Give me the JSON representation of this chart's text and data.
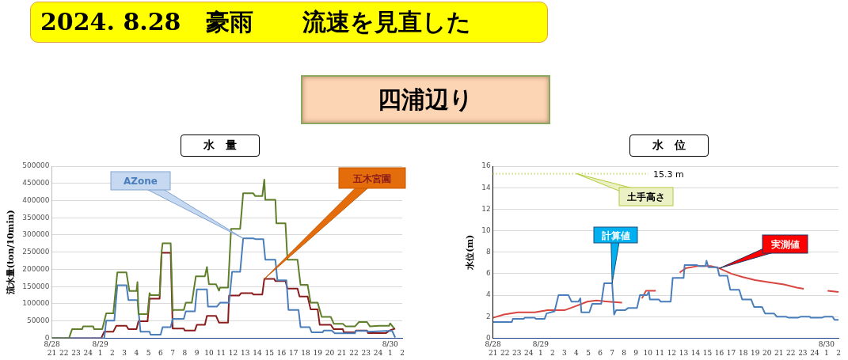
{
  "chart_data": [
    {
      "type": "other",
      "title": "2024. 8.28   豪雨      流速を見直した",
      "subtitle": "四浦辺り"
    },
    {
      "type": "line",
      "title": "水　量",
      "ylabel": "流水量(ton/10min)",
      "xlim": [
        "2024-08-28T21:00",
        "2024-08-30T02:00"
      ],
      "xticks": [
        {
          "value": "2024-08-28T21:00",
          "label": "8/28\n21"
        },
        {
          "value": "2024-08-28T22:00",
          "label": "22"
        },
        {
          "value": "2024-08-28T23:00",
          "label": "23"
        },
        {
          "value": "2024-08-29T00:00",
          "label": "24"
        },
        {
          "value": "2024-08-29T01:00",
          "label": "8/29\n1"
        },
        {
          "value": "2024-08-29T02:00",
          "label": "2"
        },
        {
          "value": "2024-08-29T03:00",
          "label": "3"
        },
        {
          "value": "2024-08-29T04:00",
          "label": "4"
        },
        {
          "value": "2024-08-29T05:00",
          "label": "5"
        },
        {
          "value": "2024-08-29T06:00",
          "label": "6"
        },
        {
          "value": "2024-08-29T07:00",
          "label": "7"
        },
        {
          "value": "2024-08-29T08:00",
          "label": "8"
        },
        {
          "value": "2024-08-29T09:00",
          "label": "9"
        },
        {
          "value": "2024-08-29T10:00",
          "label": "10"
        },
        {
          "value": "2024-08-29T11:00",
          "label": "11"
        },
        {
          "value": "2024-08-29T12:00",
          "label": "12"
        },
        {
          "value": "2024-08-29T13:00",
          "label": "13"
        },
        {
          "value": "2024-08-29T14:00",
          "label": "14"
        },
        {
          "value": "2024-08-29T15:00",
          "label": "15"
        },
        {
          "value": "2024-08-29T16:00",
          "label": "16"
        },
        {
          "value": "2024-08-29T17:00",
          "label": "17"
        },
        {
          "value": "2024-08-29T18:00",
          "label": "18"
        },
        {
          "value": "2024-08-29T19:00",
          "label": "19"
        },
        {
          "value": "2024-08-29T20:00",
          "label": "20"
        },
        {
          "value": "2024-08-29T21:00",
          "label": "21"
        },
        {
          "value": "2024-08-29T22:00",
          "label": "22"
        },
        {
          "value": "2024-08-29T23:00",
          "label": "23"
        },
        {
          "value": "2024-08-30T00:00",
          "label": "24"
        },
        {
          "value": "2024-08-30T01:00",
          "label": "8/30\n1"
        },
        {
          "value": "2024-08-30T02:00",
          "label": "2"
        }
      ],
      "ylim": [
        0,
        500000
      ],
      "yticks": [
        0,
        50000,
        100000,
        150000,
        200000,
        250000,
        300000,
        350000,
        400000,
        450000,
        500000
      ],
      "grid": "y",
      "legend": false,
      "marker": "none",
      "series": [
        {
          "color": "#5f7f2a",
          "x": [
            "2024-08-28T21:00",
            "2024-08-28T22:25",
            "2024-08-28T22:40",
            "2024-08-28T23:30",
            "2024-08-28T23:35",
            "2024-08-29T00:25",
            "2024-08-29T00:30",
            "2024-08-29T01:10",
            "2024-08-29T01:30",
            "2024-08-29T02:05",
            "2024-08-29T02:25",
            "2024-08-29T03:10",
            "2024-08-29T03:25",
            "2024-08-29T04:00",
            "2024-08-29T04:05",
            "2024-08-29T04:10",
            "2024-08-29T04:55",
            "2024-08-29T05:05",
            "2024-08-29T05:10",
            "2024-08-29T05:55",
            "2024-08-29T06:05",
            "2024-08-29T06:10",
            "2024-08-29T06:50",
            "2024-08-29T07:00",
            "2024-08-29T07:05",
            "2024-08-29T07:55",
            "2024-08-29T08:05",
            "2024-08-29T08:35",
            "2024-08-29T08:55",
            "2024-08-29T09:40",
            "2024-08-29T09:50",
            "2024-08-29T10:00",
            "2024-08-29T10:35",
            "2024-08-29T10:50",
            "2024-08-29T10:55",
            "2024-08-29T11:35",
            "2024-08-29T11:50",
            "2024-08-29T12:35",
            "2024-08-29T12:50",
            "2024-08-29T13:40",
            "2024-08-29T13:50",
            "2024-08-29T14:25",
            "2024-08-29T14:35",
            "2024-08-29T14:40",
            "2024-08-29T15:30",
            "2024-08-29T15:35",
            "2024-08-29T16:20",
            "2024-08-29T16:30",
            "2024-08-29T17:20",
            "2024-08-29T17:35",
            "2024-08-29T18:10",
            "2024-08-29T18:25",
            "2024-08-29T19:00",
            "2024-08-29T19:20",
            "2024-08-29T20:05",
            "2024-08-29T20:20",
            "2024-08-29T21:05",
            "2024-08-29T21:20",
            "2024-08-29T22:05",
            "2024-08-29T22:25",
            "2024-08-29T23:05",
            "2024-08-29T23:20",
            "2024-08-30T00:05",
            "2024-08-30T00:55",
            "2024-08-30T01:00",
            "2024-08-30T01:20"
          ],
          "values": [
            0,
            0,
            26000,
            26000,
            34000,
            34000,
            26000,
            26000,
            72000,
            72000,
            191000,
            191000,
            137000,
            137000,
            163000,
            70000,
            70000,
            131000,
            125000,
            125000,
            252000,
            276000,
            276000,
            79000,
            82000,
            82000,
            103000,
            103000,
            180000,
            180000,
            207000,
            157000,
            157000,
            138000,
            147000,
            147000,
            318000,
            318000,
            421000,
            421000,
            413000,
            413000,
            461000,
            402000,
            402000,
            334000,
            334000,
            228000,
            228000,
            155000,
            155000,
            103000,
            103000,
            62000,
            62000,
            42000,
            42000,
            34000,
            34000,
            47000,
            47000,
            34000,
            36000,
            36000,
            43000,
            28000
          ]
        },
        {
          "name": "AZone",
          "color": "#4a7ebb",
          "x": [
            "2024-08-28T21:00",
            "2024-08-29T01:20",
            "2024-08-29T01:30",
            "2024-08-29T02:10",
            "2024-08-29T02:25",
            "2024-08-29T03:10",
            "2024-08-29T03:20",
            "2024-08-29T04:05",
            "2024-08-29T04:20",
            "2024-08-29T05:05",
            "2024-08-29T05:10",
            "2024-08-29T06:00",
            "2024-08-29T06:10",
            "2024-08-29T06:50",
            "2024-08-29T07:00",
            "2024-08-29T07:55",
            "2024-08-29T08:05",
            "2024-08-29T08:50",
            "2024-08-29T09:00",
            "2024-08-29T09:50",
            "2024-08-29T09:55",
            "2024-08-29T10:40",
            "2024-08-29T10:55",
            "2024-08-29T11:40",
            "2024-08-29T11:55",
            "2024-08-29T12:35",
            "2024-08-29T12:50",
            "2024-08-29T13:40",
            "2024-08-29T13:50",
            "2024-08-29T14:30",
            "2024-08-29T14:40",
            "2024-08-29T15:30",
            "2024-08-29T15:40",
            "2024-08-29T16:25",
            "2024-08-29T16:35",
            "2024-08-29T17:25",
            "2024-08-29T17:35",
            "2024-08-29T18:20",
            "2024-08-29T18:30",
            "2024-08-29T19:25",
            "2024-08-29T19:30",
            "2024-08-29T20:10",
            "2024-08-29T20:25",
            "2024-08-29T22:05",
            "2024-08-29T22:10",
            "2024-08-29T23:05",
            "2024-08-29T23:10",
            "2024-08-30T00:40",
            "2024-08-30T01:10",
            "2024-08-30T01:25"
          ],
          "values": [
            0,
            0,
            51000,
            51000,
            154000,
            154000,
            111000,
            111000,
            19000,
            19000,
            10000,
            10000,
            32000,
            32000,
            56000,
            56000,
            78000,
            78000,
            142000,
            142000,
            92000,
            92000,
            103000,
            103000,
            193000,
            193000,
            290000,
            290000,
            288000,
            288000,
            228000,
            228000,
            168000,
            168000,
            82000,
            82000,
            32000,
            32000,
            17000,
            17000,
            22000,
            22000,
            14000,
            14000,
            21000,
            21000,
            19000,
            21000,
            21000,
            2000
          ]
        },
        {
          "name": "五木宮園",
          "color": "#8b1c1c",
          "x": [
            "2024-08-28T21:00",
            "2024-08-29T01:05",
            "2024-08-29T01:20",
            "2024-08-29T02:05",
            "2024-08-29T02:20",
            "2024-08-29T03:10",
            "2024-08-29T03:20",
            "2024-08-29T04:00",
            "2024-08-29T04:10",
            "2024-08-29T04:55",
            "2024-08-29T05:05",
            "2024-08-29T05:55",
            "2024-08-29T06:05",
            "2024-08-29T06:50",
            "2024-08-29T07:00",
            "2024-08-29T07:55",
            "2024-08-29T08:00",
            "2024-08-29T08:50",
            "2024-08-29T09:00",
            "2024-08-29T09:40",
            "2024-08-29T09:50",
            "2024-08-29T10:35",
            "2024-08-29T10:50",
            "2024-08-29T11:35",
            "2024-08-29T11:40",
            "2024-08-29T12:30",
            "2024-08-29T12:40",
            "2024-08-29T13:35",
            "2024-08-29T13:40",
            "2024-08-29T14:25",
            "2024-08-29T14:35",
            "2024-08-29T15:25",
            "2024-08-29T15:30",
            "2024-08-29T16:20",
            "2024-08-29T16:30",
            "2024-08-29T17:20",
            "2024-08-29T17:30",
            "2024-08-29T18:10",
            "2024-08-29T18:25",
            "2024-08-29T19:00",
            "2024-08-29T19:10",
            "2024-08-29T20:05",
            "2024-08-29T20:20",
            "2024-08-29T21:05",
            "2024-08-29T21:10",
            "2024-08-29T22:05",
            "2024-08-29T22:10",
            "2024-08-29T23:05",
            "2024-08-29T23:10",
            "2024-08-30T00:40",
            "2024-08-30T01:00",
            "2024-08-30T01:25"
          ],
          "values": [
            0,
            0,
            19000,
            19000,
            36000,
            36000,
            26000,
            26000,
            49000,
            49000,
            115000,
            115000,
            248000,
            248000,
            28000,
            28000,
            22000,
            22000,
            39000,
            39000,
            65000,
            65000,
            45000,
            45000,
            124000,
            124000,
            131000,
            131000,
            127000,
            127000,
            172000,
            172000,
            166000,
            166000,
            144000,
            144000,
            121000,
            121000,
            84000,
            84000,
            39000,
            39000,
            26000,
            26000,
            17000,
            17000,
            22000,
            22000,
            15000,
            15000,
            23000,
            28000
          ]
        }
      ]
    },
    {
      "type": "line",
      "title": "水　位",
      "ylabel": "水位(m)",
      "xlim": [
        "2024-08-28T21:00",
        "2024-08-30T02:00"
      ],
      "xticks": [
        {
          "value": "2024-08-28T21:00",
          "label": "8/28\n21"
        },
        {
          "value": "2024-08-28T22:00",
          "label": "22"
        },
        {
          "value": "2024-08-28T23:00",
          "label": "23"
        },
        {
          "value": "2024-08-29T00:00",
          "label": "24"
        },
        {
          "value": "2024-08-29T01:00",
          "label": "8/29\n1"
        },
        {
          "value": "2024-08-29T02:00",
          "label": "2"
        },
        {
          "value": "2024-08-29T03:00",
          "label": "3"
        },
        {
          "value": "2024-08-29T04:00",
          "label": "4"
        },
        {
          "value": "2024-08-29T05:00",
          "label": "5"
        },
        {
          "value": "2024-08-29T06:00",
          "label": "6"
        },
        {
          "value": "2024-08-29T07:00",
          "label": "7"
        },
        {
          "value": "2024-08-29T08:00",
          "label": "8"
        },
        {
          "value": "2024-08-29T09:00",
          "label": "9"
        },
        {
          "value": "2024-08-29T10:00",
          "label": "10"
        },
        {
          "value": "2024-08-29T11:00",
          "label": "11"
        },
        {
          "value": "2024-08-29T12:00",
          "label": "12"
        },
        {
          "value": "2024-08-29T13:00",
          "label": "13"
        },
        {
          "value": "2024-08-29T14:00",
          "label": "14"
        },
        {
          "value": "2024-08-29T15:00",
          "label": "15"
        },
        {
          "value": "2024-08-29T16:00",
          "label": "16"
        },
        {
          "value": "2024-08-29T17:00",
          "label": "17"
        },
        {
          "value": "2024-08-29T18:00",
          "label": "18"
        },
        {
          "value": "2024-08-29T19:00",
          "label": "19"
        },
        {
          "value": "2024-08-29T20:00",
          "label": "20"
        },
        {
          "value": "2024-08-29T21:00",
          "label": "21"
        },
        {
          "value": "2024-08-29T22:00",
          "label": "22"
        },
        {
          "value": "2024-08-29T23:00",
          "label": "23"
        },
        {
          "value": "2024-08-30T00:00",
          "label": "24"
        },
        {
          "value": "2024-08-30T01:00",
          "label": "8/30\n1"
        },
        {
          "value": "2024-08-30T02:00",
          "label": "2"
        }
      ],
      "ylim": [
        0,
        16
      ],
      "yticks": [
        0,
        2,
        4,
        6,
        8,
        10,
        12,
        14,
        16
      ],
      "grid": "y",
      "legend": false,
      "marker": "none",
      "ref_lines": [
        {
          "axis": "y",
          "value": 15.3,
          "label": "15.3 m",
          "color": "#b5c93a",
          "line_style": "dotted"
        }
      ],
      "annotations": [
        {
          "text": "土手高さ",
          "x": "2024-08-29T04:00",
          "y": 15.3
        }
      ],
      "series": [
        {
          "name": "計算値",
          "color": "#4a7ebb",
          "x": [
            "2024-08-28T21:00",
            "2024-08-28T22:35",
            "2024-08-28T22:40",
            "2024-08-28T23:35",
            "2024-08-28T23:40",
            "2024-08-29T00:30",
            "2024-08-29T00:35",
            "2024-08-29T01:20",
            "2024-08-29T01:30",
            "2024-08-29T02:10",
            "2024-08-29T02:30",
            "2024-08-29T03:20",
            "2024-08-29T03:35",
            "2024-08-29T04:10",
            "2024-08-29T04:20",
            "2024-08-29T04:25",
            "2024-08-29T05:05",
            "2024-08-29T05:20",
            "2024-08-29T06:05",
            "2024-08-29T06:20",
            "2024-08-29T07:00",
            "2024-08-29T07:10",
            "2024-08-29T07:20",
            "2024-08-29T08:05",
            "2024-08-29T08:20",
            "2024-08-29T09:05",
            "2024-08-29T09:20",
            "2024-08-29T09:55",
            "2024-08-29T10:05",
            "2024-08-29T10:10",
            "2024-08-29T10:55",
            "2024-08-29T11:05",
            "2024-08-29T11:55",
            "2024-08-29T12:05",
            "2024-08-29T13:00",
            "2024-08-29T13:05",
            "2024-08-29T14:05",
            "2024-08-29T14:20",
            "2024-08-29T14:50",
            "2024-08-29T14:55",
            "2024-08-29T15:05",
            "2024-08-29T15:50",
            "2024-08-29T16:00",
            "2024-08-29T16:40",
            "2024-08-29T16:55",
            "2024-08-29T17:40",
            "2024-08-29T17:55",
            "2024-08-29T18:40",
            "2024-08-29T18:55",
            "2024-08-29T19:35",
            "2024-08-29T19:50",
            "2024-08-29T20:35",
            "2024-08-29T20:50",
            "2024-08-29T21:35",
            "2024-08-29T21:50",
            "2024-08-29T22:35",
            "2024-08-29T22:50",
            "2024-08-29T23:35",
            "2024-08-29T23:40",
            "2024-08-30T00:35",
            "2024-08-30T00:50",
            "2024-08-30T01:30",
            "2024-08-30T01:40",
            "2024-08-30T02:00"
          ],
          "values": [
            1.5,
            1.5,
            1.8,
            1.8,
            1.9,
            1.9,
            1.8,
            1.8,
            2.3,
            2.5,
            4.0,
            4.0,
            3.4,
            3.4,
            3.7,
            2.4,
            2.4,
            3.2,
            3.2,
            5.1,
            5.1,
            2.2,
            2.6,
            2.6,
            2.8,
            2.8,
            4.0,
            4.0,
            4.3,
            3.6,
            3.6,
            3.4,
            3.4,
            5.6,
            5.6,
            6.8,
            6.8,
            6.7,
            6.7,
            7.2,
            6.6,
            6.6,
            5.8,
            5.8,
            4.5,
            4.5,
            3.6,
            3.6,
            2.9,
            2.9,
            2.3,
            2.3,
            2.0,
            2.0,
            1.9,
            1.9,
            2.0,
            2.0,
            1.9,
            1.9,
            2.0,
            2.0,
            1.7,
            1.7
          ]
        },
        {
          "name": "実測値",
          "color": "#d9463f",
          "x": [
            "2024-08-28T21:00",
            "2024-08-28T21:55",
            "2024-08-28T23:05",
            "2024-08-29T00:30",
            "2024-08-29T01:35",
            "2024-08-29T03:00",
            "2024-08-29T04:00",
            "2024-08-29T04:55",
            "2024-08-29T05:40",
            "2024-08-29T06:40",
            "2024-08-29T07:50",
            "2024-08-29T08:35",
            "2024-08-29T09:30",
            "2024-08-29T09:50",
            "2024-08-29T10:40",
            "2024-08-29T11:40",
            "2024-08-29T12:40",
            "2024-08-29T13:10",
            "2024-08-29T14:10",
            "2024-08-29T15:20",
            "2024-08-29T16:00",
            "2024-08-29T17:00",
            "2024-08-29T17:55",
            "2024-08-29T19:00",
            "2024-08-29T20:10",
            "2024-08-29T21:25",
            "2024-08-29T22:30",
            "2024-08-29T23:05",
            "2024-08-30T00:00",
            "2024-08-30T01:05",
            "2024-08-30T02:00"
          ],
          "values": [
            1.9,
            2.2,
            2.4,
            2.4,
            2.6,
            2.6,
            3.0,
            3.4,
            3.5,
            3.4,
            3.3,
            null,
            3.7,
            4.4,
            4.4,
            null,
            6.1,
            6.5,
            6.7,
            6.7,
            6.5,
            6.0,
            5.7,
            5.4,
            5.2,
            5.0,
            4.7,
            4.6,
            null,
            4.4,
            4.3
          ]
        }
      ]
    }
  ]
}
